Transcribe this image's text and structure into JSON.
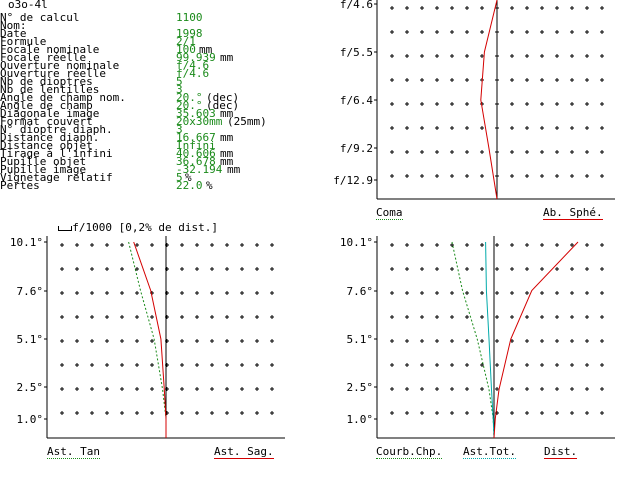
{
  "title": "o3o-4l",
  "params": [
    {
      "label": "N° de calcul",
      "value": "1100",
      "unit": ""
    },
    {
      "label": "Nom:",
      "value": "",
      "unit": ""
    },
    {
      "label": "Date",
      "value": "1998",
      "unit": ""
    },
    {
      "label": "Formule",
      "value": "2/1",
      "unit": ""
    },
    {
      "label": "Focale nominale",
      "value": "100",
      "unit": "mm"
    },
    {
      "label": "Focale réelle",
      "value": "99.939",
      "unit": "mm"
    },
    {
      "label": "Ouverture nominale",
      "value": "f/4.6",
      "unit": ""
    },
    {
      "label": "Ouverture réelle",
      "value": "f/4.6",
      "unit": ""
    },
    {
      "label": "Nb de dioptres",
      "value": "5",
      "unit": ""
    },
    {
      "label": "Nb de lentilles",
      "value": "3",
      "unit": ""
    },
    {
      "label": "Angle de champ nom.",
      "value": "20.°",
      "unit": "(dec)"
    },
    {
      "label": "Angle de champ",
      "value": "20.°",
      "unit": "(dec)"
    },
    {
      "label": "Diagonale image",
      "value": "35.603",
      "unit": "mm"
    },
    {
      "label": "Format couvert",
      "value": "20x30mm",
      "unit": "(25mm)"
    },
    {
      "label": "N° dioptre diaph.",
      "value": "3",
      "unit": ""
    },
    {
      "label": "Distance diaph.",
      "value": "16.667",
      "unit": "mm"
    },
    {
      "label": "Distance objet",
      "value": "Infini",
      "unit": ""
    },
    {
      "label": "Tirage à l'infini",
      "value": "40.606",
      "unit": "mm"
    },
    {
      "label": "Pupille objet",
      "value": "36.678",
      "unit": "mm"
    },
    {
      "label": "Pupille image",
      "value": "-32.194",
      "unit": "mm"
    },
    {
      "label": "Vignetage relatif",
      "value": "5",
      "unit": "%"
    },
    {
      "label": "Pertes",
      "value": "22.0",
      "unit": "%"
    }
  ],
  "scale_note": "f/1000 [0,2% de dist.]",
  "colors": {
    "red": "#d40000",
    "green": "#1a8a1a",
    "cyan": "#00aaaa",
    "value_text": "#1a8a1a"
  },
  "chart_data": [
    {
      "type": "line",
      "panel": "coma-spherical",
      "y_tick_labels": [
        "f/4.6",
        "f/5.5",
        "f/6.4",
        "f/9.2",
        "f/12.9"
      ],
      "series": [
        {
          "name": "Coma",
          "color": "green",
          "values": []
        },
        {
          "name": "Ab. Sphé.",
          "color": "red",
          "values": [
            0.0,
            -0.7,
            -0.9,
            -0.45,
            0.0
          ]
        }
      ]
    },
    {
      "type": "line",
      "panel": "astigmatism",
      "y_tick_labels": [
        "10.1°",
        "7.6°",
        "5.1°",
        "2.5°",
        "1.0°"
      ],
      "series": [
        {
          "name": "Ast. Tan",
          "color": "green",
          "y": [
            10.1,
            7.6,
            5.1,
            2.5,
            1.0,
            0
          ],
          "x": [
            -1.1,
            -0.75,
            -0.35,
            -0.1,
            0.0,
            0.0
          ]
        },
        {
          "name": "Ast. Sag.",
          "color": "red",
          "y": [
            10.1,
            7.6,
            5.1,
            2.5,
            1.0,
            0
          ],
          "x": [
            -0.95,
            -0.45,
            -0.15,
            -0.05,
            0.0,
            0.0
          ]
        }
      ]
    },
    {
      "type": "line",
      "panel": "field-curvature-distortion",
      "y_tick_labels": [
        "10.1°",
        "7.6°",
        "5.1°",
        "2.5°",
        "1.0°"
      ],
      "series": [
        {
          "name": "Courb.Chp.",
          "color": "green",
          "y": [
            10.1,
            7.6,
            5.1,
            2.5,
            1.0,
            0
          ],
          "x": [
            -1.0,
            -0.75,
            -0.4,
            -0.12,
            -0.02,
            0.0
          ]
        },
        {
          "name": "Ast.Tot.",
          "color": "cyan",
          "y": [
            10.1,
            7.6,
            5.1,
            2.5,
            1.0,
            0
          ],
          "x": [
            -0.2,
            -0.18,
            -0.12,
            -0.06,
            -0.02,
            0.0
          ]
        },
        {
          "name": "Dist.",
          "color": "red",
          "y": [
            10.1,
            7.6,
            5.1,
            2.5,
            1.0,
            0
          ],
          "x": [
            2.0,
            0.9,
            0.4,
            0.12,
            0.03,
            0.0
          ]
        }
      ]
    }
  ]
}
